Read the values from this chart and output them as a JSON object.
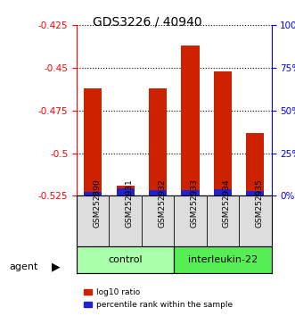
{
  "title": "GDS3226 / 40940",
  "samples": [
    "GSM252890",
    "GSM252931",
    "GSM252932",
    "GSM252933",
    "GSM252934",
    "GSM252935"
  ],
  "groups": [
    "control",
    "control",
    "control",
    "interleukin-22",
    "interleukin-22",
    "interleukin-22"
  ],
  "log10_ratio": [
    -0.462,
    -0.519,
    -0.462,
    -0.437,
    -0.452,
    -0.488
  ],
  "percentile_rank": [
    2.5,
    4.5,
    3.5,
    3.5,
    4.0,
    3.0
  ],
  "ylim_left": [
    -0.525,
    -0.425
  ],
  "ylim_right": [
    0,
    100
  ],
  "yticks_left": [
    -0.525,
    -0.5,
    -0.475,
    -0.45,
    -0.425
  ],
  "yticks_right": [
    0,
    25,
    50,
    75,
    100
  ],
  "bar_bottom": -0.525,
  "group_colors": {
    "control": "#aaffaa",
    "interleukin-22": "#55ee55"
  },
  "bar_color_red": "#cc2200",
  "bar_color_blue": "#2222cc",
  "grid_color": "#000000",
  "background_color": "#ffffff",
  "plot_bg": "#ffffff",
  "xlabel": "",
  "agent_label": "agent",
  "legend_red": "log10 ratio",
  "legend_blue": "percentile rank within the sample"
}
